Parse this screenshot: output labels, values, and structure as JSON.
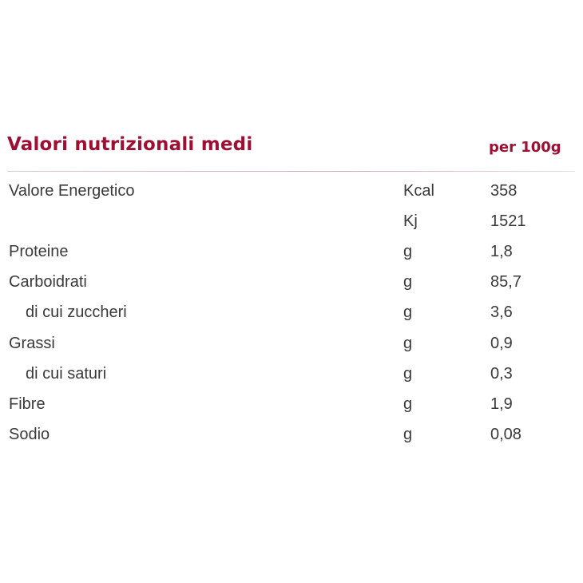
{
  "header": {
    "title": "Valori nutrizionali medi",
    "per": "per 100g"
  },
  "colors": {
    "accent": "#9e1033",
    "text": "#3a3a3a"
  },
  "rows": [
    {
      "label": "Valore Energetico",
      "unit": "Kcal",
      "value": "358"
    },
    {
      "label": "",
      "unit": "Kj",
      "value": "1521"
    },
    {
      "label": "Proteine",
      "unit": "g",
      "value": "1,8"
    },
    {
      "label": "Carboidrati",
      "unit": "g",
      "value": "85,7"
    },
    {
      "label": "di cui zuccheri",
      "unit": "g",
      "value": "3,6"
    },
    {
      "label": "Grassi",
      "unit": "g",
      "value": "0,9"
    },
    {
      "label": "di cui saturi",
      "unit": "g",
      "value": "0,3"
    },
    {
      "label": "Fibre",
      "unit": "g",
      "value": "1,9"
    },
    {
      "label": "Sodio",
      "unit": "g",
      "value": "0,08"
    }
  ]
}
